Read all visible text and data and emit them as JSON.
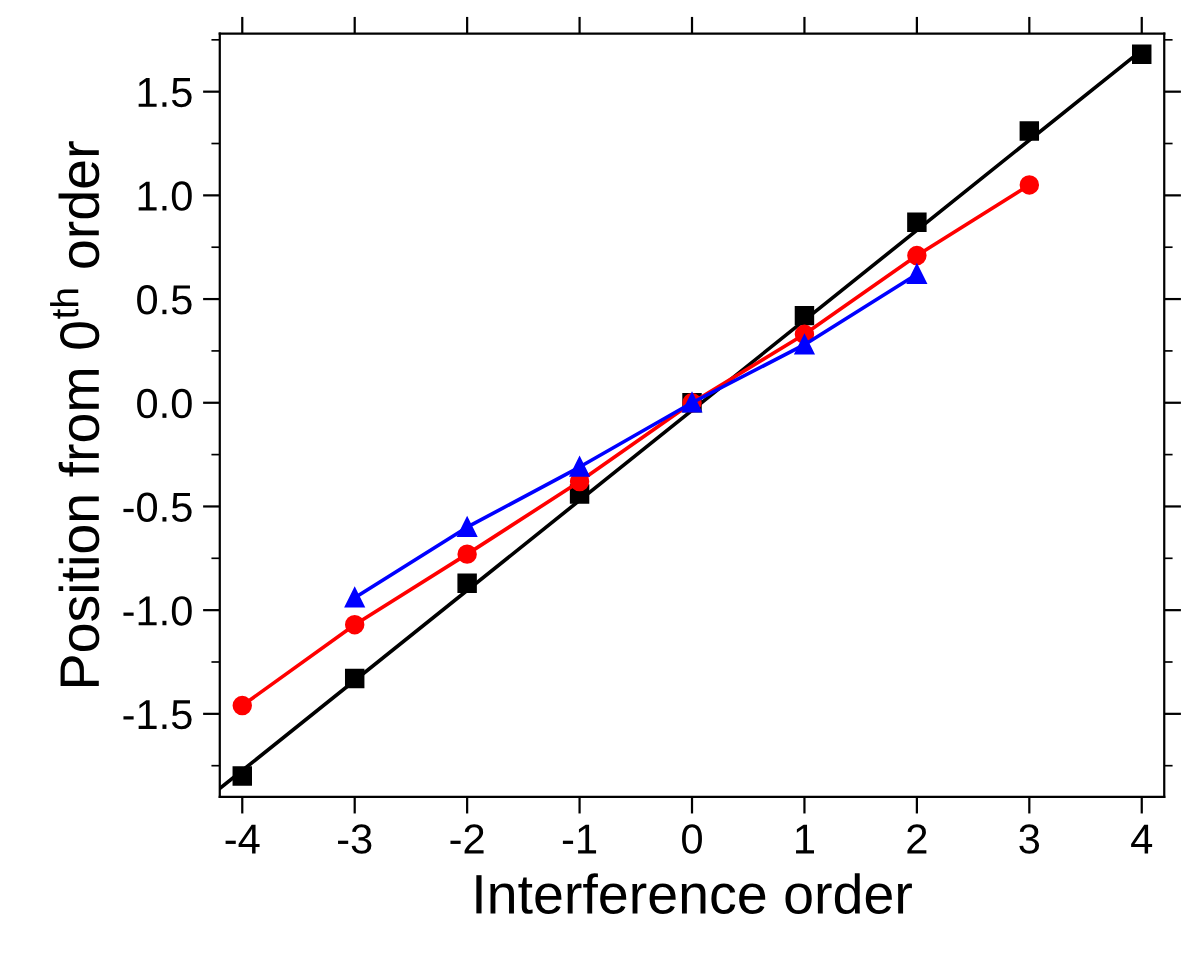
{
  "chart_data": {
    "type": "line",
    "xlabel": "Interference order",
    "ylabel": "Position from 0$^{th}$ order",
    "x": [
      -4,
      -3,
      -2,
      -1,
      0,
      1,
      2,
      3,
      4
    ],
    "series": [
      {
        "type": "scatter",
        "color": "#000000",
        "marker": "square",
        "values": [
          -1.8,
          -1.33,
          -0.87,
          -0.44,
          0,
          0.42,
          0.87,
          1.31,
          1.68
        ]
      },
      {
        "color": "#000000",
        "marker": "none",
        "x": [
          -4.2,
          4
        ],
        "values": [
          -1.86,
          1.7
        ]
      },
      {
        "color": "#ff0000",
        "marker": "circle",
        "values": [
          -1.46,
          -1.07,
          -0.73,
          -0.38,
          0,
          0.33,
          0.71,
          1.05,
          null
        ]
      },
      {
        "color": "#0000ff",
        "marker": "triangle",
        "values": [
          null,
          -0.94,
          -0.6,
          -0.31,
          0,
          0.28,
          0.62,
          null,
          null
        ]
      }
    ],
    "xlim": [
      -4.2,
      4.2
    ],
    "ylim": [
      -1.9,
      1.78
    ],
    "xticks": [
      -4,
      -3,
      -2,
      -1,
      0,
      1,
      2,
      3,
      4
    ],
    "yticks": [
      -1.5,
      {
        "value": -1,
        "label": "-1.0"
      },
      -0.5,
      {
        "value": 0,
        "label": "0.0"
      },
      0.5,
      {
        "value": 1,
        "label": "1.0"
      },
      1.5
    ],
    "grid": false,
    "legend": false,
    "line_style": "solid"
  }
}
